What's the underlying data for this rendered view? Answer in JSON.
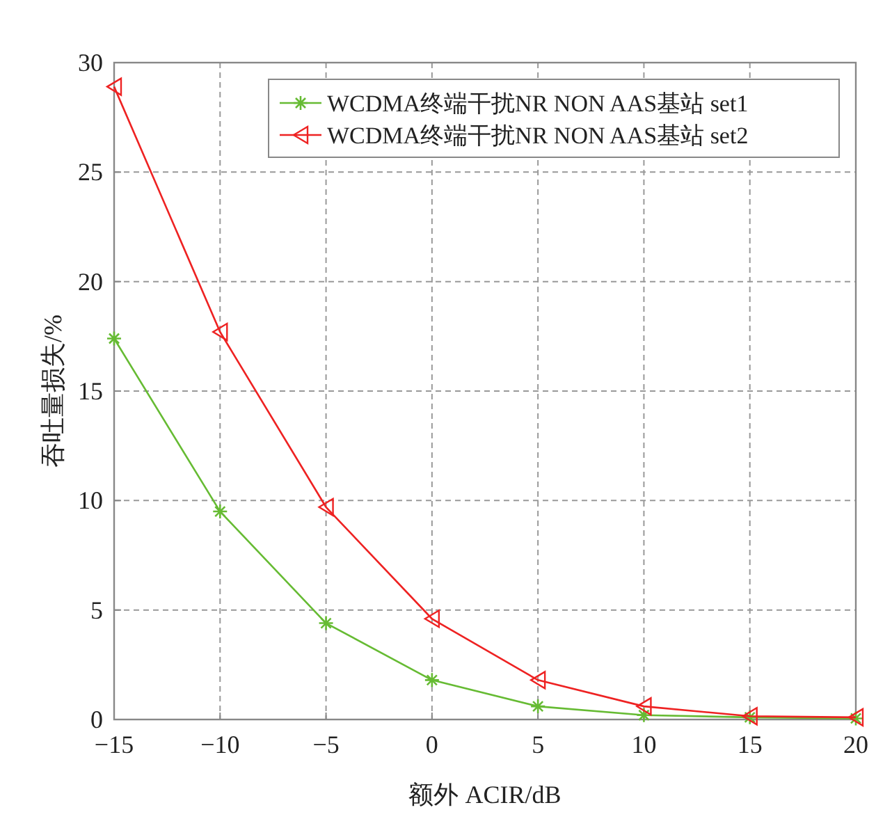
{
  "chart_data": {
    "type": "line",
    "xlabel": "额外 ACIR/dB",
    "ylabel": "吞吐量损失/%",
    "x": [
      -15,
      -10,
      -5,
      0,
      5,
      10,
      15,
      20
    ],
    "series": [
      {
        "name": "WCDMA终端干扰NR NON AAS基站 set1",
        "color": "#66bb33",
        "marker": "cross",
        "values": [
          17.4,
          9.5,
          4.4,
          1.8,
          0.6,
          0.2,
          0.1,
          0.05
        ]
      },
      {
        "name": "WCDMA终端干扰NR NON AAS基站 set2",
        "color": "#ee2222",
        "marker": "triangle",
        "values": [
          28.9,
          17.7,
          9.7,
          4.6,
          1.8,
          0.6,
          0.15,
          0.1
        ]
      }
    ],
    "xlim": [
      -15,
      20
    ],
    "ylim": [
      0,
      30
    ],
    "xticks": [
      {
        "value": -15,
        "label": "−15"
      },
      {
        "value": -10,
        "label": "−10"
      },
      {
        "value": -5,
        "label": "−5"
      },
      0,
      5,
      10,
      15,
      20
    ],
    "yticks": [
      0,
      5,
      10,
      15,
      20,
      25,
      30
    ],
    "grid": true,
    "legend": "top right",
    "line_style": "solid"
  }
}
